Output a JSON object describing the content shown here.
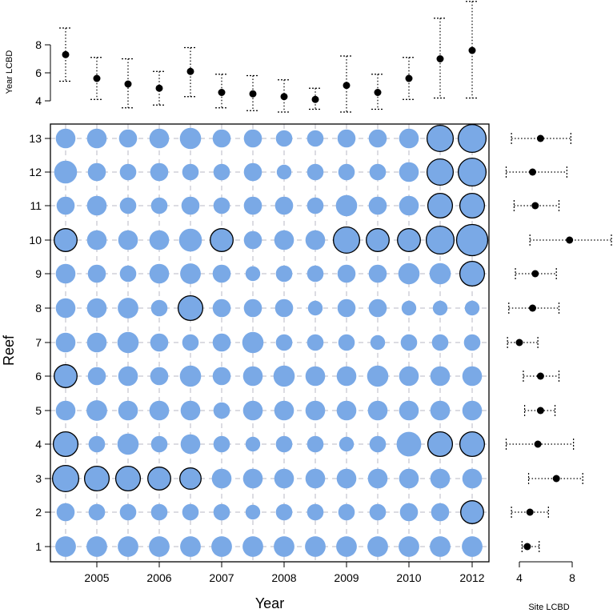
{
  "chart_data": [
    {
      "type": "bubble-grid",
      "title": "",
      "xlabel": "Year",
      "ylabel": "Reef",
      "x_ticks": [
        "2005",
        "2006",
        "2007",
        "2008",
        "2009",
        "2010",
        "2012"
      ],
      "y_ticks": [
        "1",
        "2",
        "3",
        "4",
        "5",
        "6",
        "7",
        "8",
        "9",
        "10",
        "11",
        "12",
        "13"
      ],
      "n_columns": 14,
      "n_rows": 13,
      "fill_color": "#7aa9e6",
      "outline_color": "#000000",
      "grid": true,
      "note": "values are relative LCBD bubble sizes per reef (row) and survey column",
      "values": [
        [
          6.3,
          6.3,
          6.3,
          6.3,
          6.3,
          6.3,
          6.3,
          6.3,
          6.3,
          6.3,
          6.3,
          6.3,
          6.3,
          6.3
        ],
        [
          5.5,
          5.0,
          5.0,
          5.0,
          5.0,
          5.0,
          4.5,
          5.0,
          5.0,
          5.0,
          5.0,
          5.5,
          5.5,
          7.0
        ],
        [
          8.0,
          7.5,
          7.5,
          7.0,
          6.5,
          6.0,
          6.0,
          6.0,
          6.0,
          6.0,
          6.0,
          6.0,
          6.0,
          6.0
        ],
        [
          7.5,
          5.0,
          6.5,
          5.0,
          6.0,
          5.0,
          4.5,
          5.0,
          5.0,
          4.5,
          5.0,
          7.5,
          7.5,
          7.5
        ],
        [
          6.0,
          6.3,
          6.0,
          6.0,
          6.0,
          5.0,
          6.0,
          6.0,
          6.0,
          6.0,
          6.0,
          6.0,
          6.0,
          6.0
        ],
        [
          7.0,
          5.5,
          6.0,
          5.5,
          6.5,
          5.5,
          6.0,
          6.5,
          6.0,
          6.0,
          6.5,
          6.0,
          6.0,
          6.0
        ],
        [
          6.0,
          6.0,
          6.5,
          5.5,
          5.0,
          5.5,
          6.5,
          5.0,
          5.0,
          5.0,
          4.5,
          5.0,
          5.0,
          5.0
        ],
        [
          6.0,
          6.0,
          6.3,
          5.0,
          7.5,
          5.5,
          5.5,
          5.5,
          4.5,
          5.5,
          5.5,
          4.5,
          4.5,
          4.5
        ],
        [
          6.0,
          5.5,
          5.0,
          6.0,
          6.3,
          5.5,
          4.5,
          5.0,
          5.0,
          5.5,
          5.5,
          6.5,
          6.5,
          7.5
        ],
        [
          7.0,
          6.0,
          6.0,
          6.0,
          7.0,
          7.0,
          5.5,
          6.0,
          6.0,
          8.0,
          7.0,
          7.0,
          8.5,
          9.5
        ],
        [
          5.5,
          6.0,
          5.0,
          5.0,
          5.5,
          5.0,
          5.5,
          5.5,
          5.0,
          6.5,
          5.5,
          6.0,
          7.5,
          7.5
        ],
        [
          7.0,
          5.5,
          5.0,
          5.5,
          5.0,
          5.0,
          5.5,
          4.5,
          5.0,
          5.0,
          5.0,
          6.0,
          8.0,
          8.5
        ],
        [
          6.0,
          6.0,
          5.5,
          6.0,
          6.5,
          5.5,
          5.5,
          5.0,
          5.0,
          5.5,
          5.5,
          6.0,
          8.0,
          8.5
        ]
      ],
      "outlined": [
        [
          false,
          false,
          false,
          false,
          false,
          false,
          false,
          false,
          false,
          false,
          false,
          false,
          false,
          false
        ],
        [
          false,
          false,
          false,
          false,
          false,
          false,
          false,
          false,
          false,
          false,
          false,
          false,
          false,
          true
        ],
        [
          true,
          true,
          true,
          true,
          true,
          false,
          false,
          false,
          false,
          false,
          false,
          false,
          false,
          false
        ],
        [
          true,
          false,
          false,
          false,
          false,
          false,
          false,
          false,
          false,
          false,
          false,
          false,
          true,
          true
        ],
        [
          false,
          false,
          false,
          false,
          false,
          false,
          false,
          false,
          false,
          false,
          false,
          false,
          false,
          false
        ],
        [
          true,
          false,
          false,
          false,
          false,
          false,
          false,
          false,
          false,
          false,
          false,
          false,
          false,
          false
        ],
        [
          false,
          false,
          false,
          false,
          false,
          false,
          false,
          false,
          false,
          false,
          false,
          false,
          false,
          false
        ],
        [
          false,
          false,
          false,
          false,
          true,
          false,
          false,
          false,
          false,
          false,
          false,
          false,
          false,
          false
        ],
        [
          false,
          false,
          false,
          false,
          false,
          false,
          false,
          false,
          false,
          false,
          false,
          false,
          false,
          true
        ],
        [
          true,
          false,
          false,
          false,
          false,
          true,
          false,
          false,
          false,
          true,
          true,
          true,
          true,
          true
        ],
        [
          false,
          false,
          false,
          false,
          false,
          false,
          false,
          false,
          false,
          false,
          false,
          false,
          true,
          true
        ],
        [
          false,
          false,
          false,
          false,
          false,
          false,
          false,
          false,
          false,
          false,
          false,
          false,
          true,
          true
        ],
        [
          false,
          false,
          false,
          false,
          false,
          false,
          false,
          false,
          false,
          false,
          false,
          false,
          true,
          true
        ]
      ]
    },
    {
      "type": "dot-errorbar",
      "ylabel": "Year LCBD",
      "y_ticks": [
        "4",
        "6",
        "8"
      ],
      "ylim": [
        3.3,
        9.3
      ],
      "n_columns": 14,
      "mean": [
        7.3,
        5.6,
        5.2,
        4.9,
        6.1,
        4.6,
        4.5,
        4.3,
        4.1,
        5.1,
        4.6,
        5.6,
        7.0,
        7.6
      ],
      "lower": [
        5.4,
        4.1,
        3.5,
        3.7,
        4.3,
        3.5,
        3.3,
        3.2,
        3.4,
        3.2,
        3.4,
        4.1,
        4.2,
        4.2
      ],
      "upper": [
        9.2,
        7.1,
        7.0,
        6.1,
        7.8,
        5.9,
        5.8,
        5.5,
        4.9,
        7.2,
        5.9,
        7.1,
        9.9,
        11.1
      ]
    },
    {
      "type": "dot-errorbar-horizontal",
      "xlabel": "Site LCBD",
      "x_ticks": [
        "4",
        "8"
      ],
      "xlim": [
        2.8,
        8.2
      ],
      "mean": [
        4.6,
        4.8,
        6.8,
        5.4,
        5.6,
        5.6,
        4.0,
        5.0,
        5.2,
        7.8,
        5.2,
        5.0,
        5.6
      ],
      "lower": [
        4.2,
        3.4,
        4.7,
        3.0,
        4.4,
        4.3,
        3.1,
        3.2,
        3.7,
        4.8,
        3.6,
        3.0,
        3.4
      ],
      "upper": [
        5.5,
        6.2,
        8.8,
        8.1,
        6.7,
        7.0,
        5.4,
        7.0,
        6.8,
        11.0,
        7.0,
        7.6,
        7.9
      ]
    }
  ]
}
